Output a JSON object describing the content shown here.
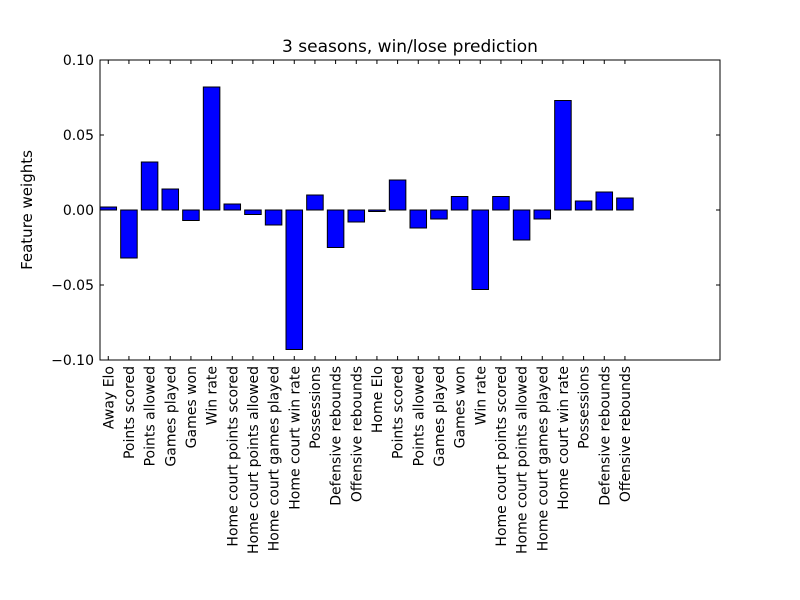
{
  "chart_data": {
    "type": "bar",
    "title": "3 seasons, win/lose prediction",
    "xlabel": "",
    "ylabel": "Feature weights",
    "ylim": [
      -0.1,
      0.1
    ],
    "yticks": [
      -0.1,
      -0.05,
      0.0,
      0.05,
      0.1
    ],
    "ytick_labels": [
      "−0.10",
      "−0.05",
      "0.00",
      "0.05",
      "0.10"
    ],
    "grid": false,
    "bar_color": "#0000ff",
    "categories": [
      "Away Elo",
      "Points scored",
      "Points allowed",
      "Games played",
      "Games won",
      "Win rate",
      "Home court points scored",
      "Home court points allowed",
      "Home court games played",
      "Home court win rate",
      "Possessions",
      "Defensive rebounds",
      "Offensive rebounds",
      "Home Elo",
      "Points scored",
      "Points allowed",
      "Games played",
      "Games won",
      "Win rate",
      "Home court points scored",
      "Home court points allowed",
      "Home court games played",
      "Home court win rate",
      "Possessions",
      "Defensive rebounds",
      "Offensive rebounds"
    ],
    "values": [
      0.002,
      -0.032,
      0.032,
      0.014,
      -0.007,
      0.082,
      0.004,
      -0.003,
      -0.01,
      -0.093,
      0.01,
      -0.025,
      -0.008,
      -0.001,
      0.02,
      -0.012,
      -0.006,
      0.009,
      -0.053,
      0.009,
      -0.02,
      -0.006,
      0.073,
      0.006,
      0.012,
      0.008
    ]
  }
}
